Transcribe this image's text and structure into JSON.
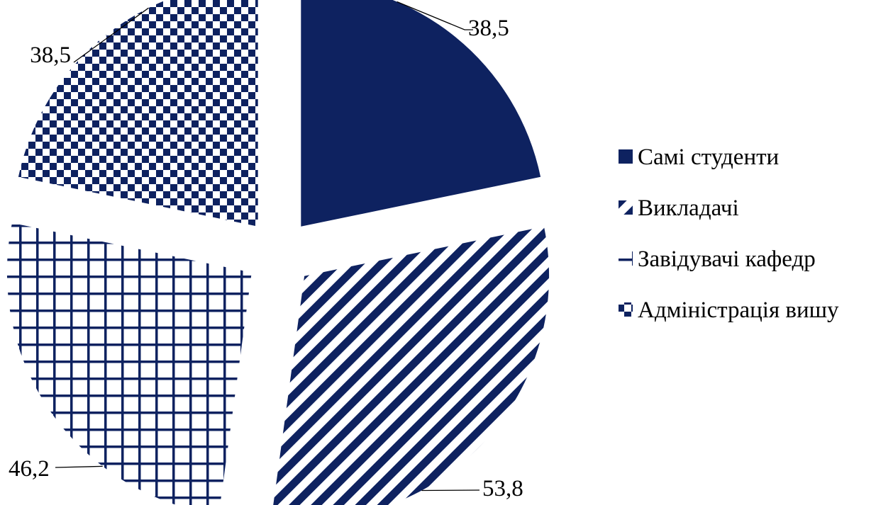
{
  "chart_data": {
    "type": "pie",
    "title": "",
    "series": [
      {
        "name": "Самі студенти",
        "value": 38.5,
        "label": "38,5",
        "pattern": "solid"
      },
      {
        "name": "Викладачі",
        "value": 53.8,
        "label": "53,8",
        "pattern": "diagonal-stripes"
      },
      {
        "name": "Завідувачі кафедр",
        "value": 46.2,
        "label": "46,2",
        "pattern": "grid"
      },
      {
        "name": "Адміністрація вишу",
        "value": 38.5,
        "label": "38,5",
        "pattern": "checkerboard"
      }
    ],
    "legend_position": "right",
    "exploded": true,
    "colors": {
      "primary": "#0e2260",
      "background": "#ffffff"
    }
  }
}
